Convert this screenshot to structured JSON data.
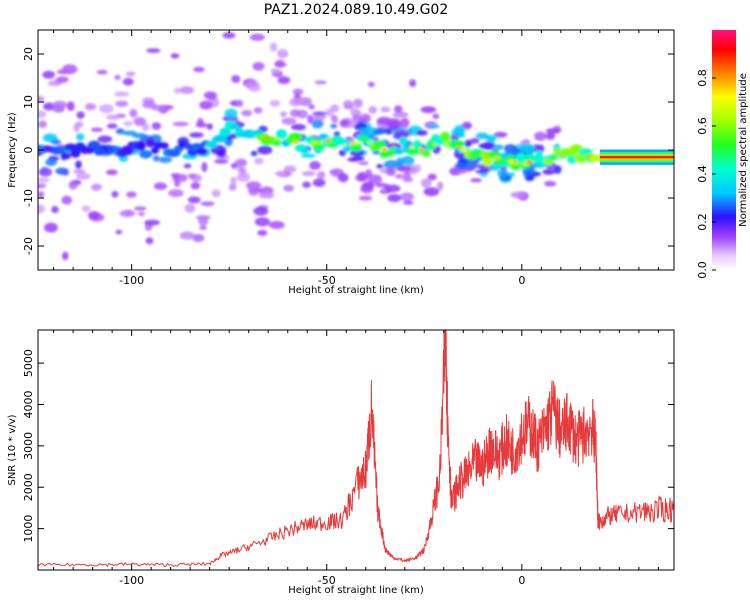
{
  "figure": {
    "title": "PAZ1.2024.089.10.49.G02"
  },
  "chart_data": [
    {
      "type": "heatmap",
      "xlabel": "Height of straight line (km)",
      "ylabel": "Frequency (Hz)",
      "xlim": [
        -124,
        39
      ],
      "ylim": [
        -25,
        25
      ],
      "xticks": [
        -100,
        -50,
        0
      ],
      "yticks": [
        -20,
        -10,
        0,
        10,
        20
      ],
      "colorbar": {
        "label": "Normalized spectral amplitude",
        "range": [
          0,
          1
        ],
        "ticks": [
          "0.0",
          "0.2",
          "0.4",
          "0.6",
          "0.8"
        ]
      },
      "ridge": {
        "x": [
          -124,
          -110,
          -100,
          -90,
          -80,
          -75,
          -70,
          -65,
          -60,
          -55,
          -50,
          -45,
          -40,
          -35,
          -30,
          -25,
          -20,
          -15,
          -10,
          -5,
          0,
          5,
          10,
          15,
          20,
          25,
          30,
          35,
          39
        ],
        "freq": [
          -1,
          0,
          0.5,
          0,
          1,
          4,
          3,
          2.5,
          2,
          1,
          2,
          1,
          2,
          0,
          1,
          0,
          2,
          0,
          -1,
          -2,
          -3,
          -2,
          -1,
          -1,
          -1.5,
          -1.5,
          -1.5,
          -1.5,
          -1.5
        ]
      }
    },
    {
      "type": "line",
      "xlabel": "Height of straight line (km)",
      "ylabel": "SNR (10 * v/v)",
      "xlim": [
        -124,
        39
      ],
      "ylim": [
        0,
        5800
      ],
      "xticks": [
        -100,
        -50,
        0
      ],
      "yticks": [
        1000,
        2000,
        3000,
        4000,
        5000
      ],
      "series": [
        {
          "color": "#e83a3a",
          "x": [
            -124,
            -110,
            -100,
            -90,
            -80,
            -77,
            -72,
            -66,
            -60,
            -55,
            -50,
            -46,
            -42,
            -40,
            -38.5,
            -37,
            -35,
            -33,
            -30,
            -27,
            -25,
            -23,
            -21,
            -19.5,
            -19,
            -18,
            -16,
            -14,
            -12,
            -10,
            -8,
            -6,
            -4,
            -2,
            0,
            2,
            4,
            6,
            8,
            10,
            12,
            14,
            16,
            18,
            19,
            19.5,
            20,
            22,
            25,
            30,
            35,
            39
          ],
          "values": [
            120,
            130,
            140,
            120,
            150,
            350,
            500,
            700,
            950,
            1100,
            1150,
            1200,
            2100,
            2400,
            3900,
            1500,
            500,
            300,
            220,
            300,
            500,
            1300,
            2300,
            5800,
            3500,
            1600,
            2100,
            2300,
            2600,
            2500,
            3000,
            2750,
            3100,
            2850,
            3300,
            3500,
            3000,
            3400,
            3900,
            3300,
            3600,
            3100,
            3300,
            3500,
            3000,
            1200,
            1150,
            1300,
            1350,
            1400,
            1450,
            1480
          ]
        }
      ]
    }
  ]
}
